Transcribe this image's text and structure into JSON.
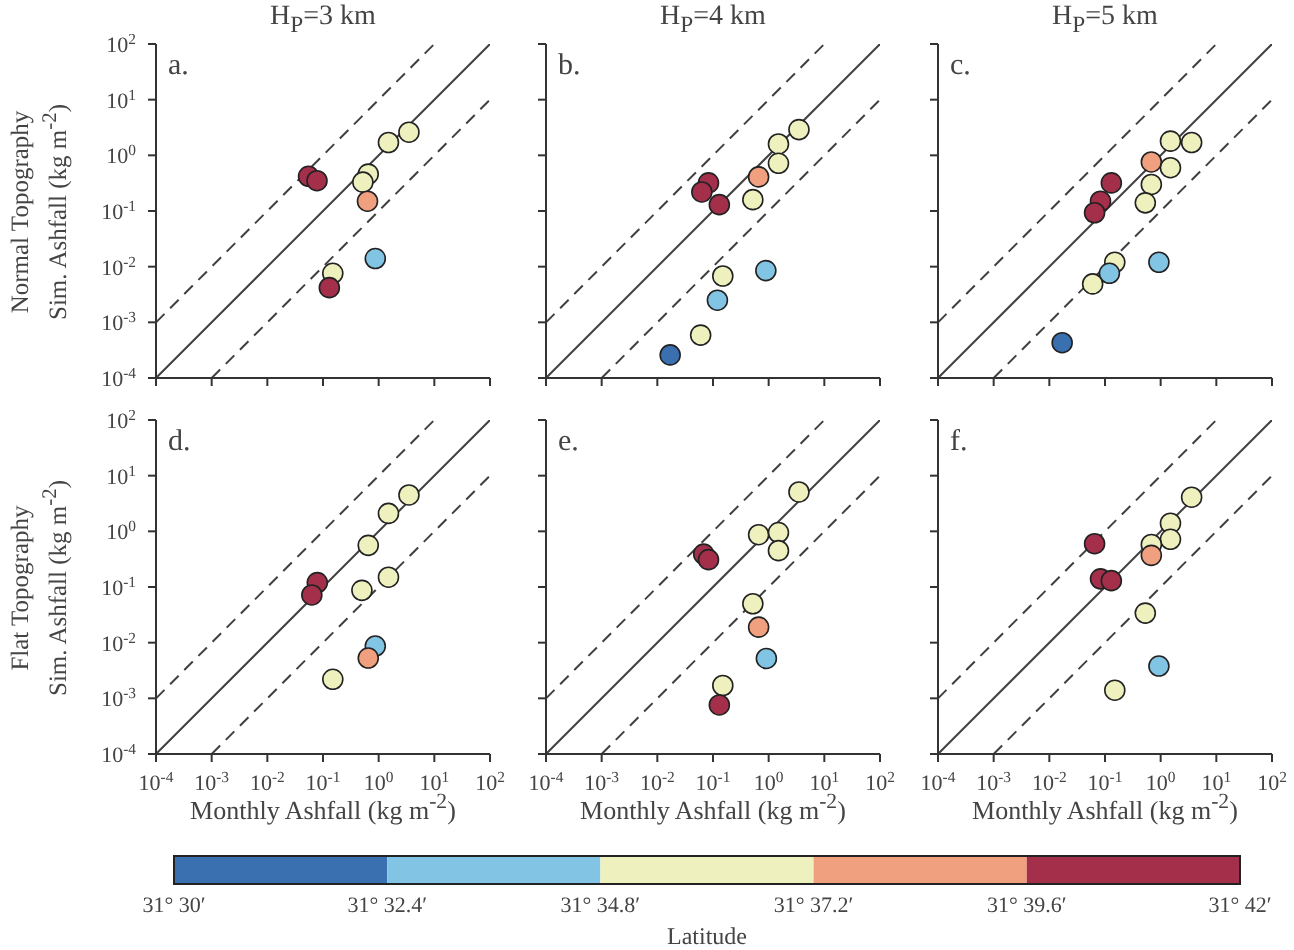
{
  "chart_data": [
    {
      "type": "scatter",
      "title": "H$_{P}$=3 km",
      "ylabel": "Normal Topography\nSim. Ashfall (kg m$^{-2}$)",
      "annotations": [
        "a."
      ],
      "log": "xy",
      "tick_labels": "y",
      "xlim": [
        0.0001,
        100
      ],
      "ylim": [
        0.0001,
        100
      ],
      "xticks": [
        {
          "value": 0.0001,
          "label": null
        },
        {
          "value": 0.001,
          "label": null
        },
        {
          "value": 0.01,
          "label": null
        },
        {
          "value": 0.1,
          "label": null
        },
        {
          "value": 1,
          "label": null
        },
        {
          "value": 10,
          "label": null
        },
        {
          "value": 100,
          "label": null
        }
      ],
      "yticks": [
        {
          "value": 0.0001,
          "label": "10$^{-4}$"
        },
        {
          "value": 0.001,
          "label": "10$^{-3}$"
        },
        {
          "value": 0.01,
          "label": "10$^{-2}$"
        },
        {
          "value": 0.1,
          "label": "10$^{-1}$"
        },
        {
          "value": 1,
          "label": "10$^{0}$"
        },
        {
          "value": 10,
          "label": "10$^{1}$"
        },
        {
          "value": 100,
          "label": "10$^{2}$"
        }
      ],
      "series": [
        {
          "type": "scatter",
          "marker": "circle",
          "x": [
            0.055,
            0.078,
            1.5,
            3.5,
            0.65,
            0.52,
            0.63,
            0.87,
            0.15,
            0.13
          ],
          "values": [
            0.42,
            0.35,
            1.7,
            2.6,
            0.46,
            0.33,
            0.15,
            0.014,
            0.0076,
            0.0042
          ],
          "colors": [
            "#a32f4a",
            "#a32f4a",
            "#eef1be",
            "#eef1be",
            "#eef1be",
            "#eef1be",
            "#f1a07f",
            "#82c4e4",
            "#eef1be",
            "#a32f4a"
          ]
        },
        {
          "type": "line",
          "x": [
            0.0001,
            100
          ],
          "values": [
            0.0001,
            100
          ],
          "color": "#404040",
          "line_style": "solid"
        },
        {
          "type": "line",
          "x": [
            0.0001,
            10
          ],
          "values": [
            0.001,
            100
          ],
          "color": "#404040",
          "line_style": "dashed"
        },
        {
          "type": "line",
          "x": [
            0.001,
            100
          ],
          "values": [
            0.0001,
            10
          ],
          "color": "#404040",
          "line_style": "dashed"
        }
      ]
    },
    {
      "type": "scatter",
      "title": "H$_{P}$=4 km",
      "annotations": [
        "b."
      ],
      "log": "xy",
      "tick_labels": false,
      "xlim": [
        0.0001,
        100
      ],
      "ylim": [
        0.0001,
        100
      ],
      "xticks": [
        {
          "value": 0.0001,
          "label": null
        },
        {
          "value": 0.001,
          "label": null
        },
        {
          "value": 0.01,
          "label": null
        },
        {
          "value": 0.1,
          "label": null
        },
        {
          "value": 1,
          "label": null
        },
        {
          "value": 10,
          "label": null
        },
        {
          "value": 100,
          "label": null
        }
      ],
      "yticks": [
        {
          "value": 0.0001,
          "label": null
        },
        {
          "value": 0.001,
          "label": null
        },
        {
          "value": 0.01,
          "label": null
        },
        {
          "value": 0.1,
          "label": null
        },
        {
          "value": 1,
          "label": null
        },
        {
          "value": 10,
          "label": null
        },
        {
          "value": 100,
          "label": null
        }
      ],
      "series": [
        {
          "type": "scatter",
          "marker": "circle",
          "x": [
            0.083,
            0.063,
            0.13,
            0.66,
            0.52,
            1.5,
            3.5,
            1.5,
            0.15,
            0.89,
            0.12,
            0.06,
            0.017
          ],
          "values": [
            0.32,
            0.22,
            0.13,
            0.41,
            0.16,
            1.6,
            2.9,
            0.72,
            0.0068,
            0.0085,
            0.0025,
            0.00059,
            0.00026
          ],
          "colors": [
            "#a32f4a",
            "#a32f4a",
            "#a32f4a",
            "#f1a07f",
            "#eef1be",
            "#eef1be",
            "#eef1be",
            "#eef1be",
            "#eef1be",
            "#82c4e4",
            "#82c4e4",
            "#eef1be",
            "#3a6fb0"
          ]
        },
        {
          "type": "line",
          "x": [
            0.0001,
            100
          ],
          "values": [
            0.0001,
            100
          ],
          "color": "#404040",
          "line_style": "solid"
        },
        {
          "type": "line",
          "x": [
            0.0001,
            10
          ],
          "values": [
            0.001,
            100
          ],
          "color": "#404040",
          "line_style": "dashed"
        },
        {
          "type": "line",
          "x": [
            0.001,
            100
          ],
          "values": [
            0.0001,
            10
          ],
          "color": "#404040",
          "line_style": "dashed"
        }
      ]
    },
    {
      "type": "scatter",
      "title": "H$_{P}$=5 km",
      "annotations": [
        "c."
      ],
      "log": "xy",
      "tick_labels": false,
      "xlim": [
        0.0001,
        100
      ],
      "ylim": [
        0.0001,
        100
      ],
      "xticks": [
        {
          "value": 0.0001,
          "label": null
        },
        {
          "value": 0.001,
          "label": null
        },
        {
          "value": 0.01,
          "label": null
        },
        {
          "value": 0.1,
          "label": null
        },
        {
          "value": 1,
          "label": null
        },
        {
          "value": 10,
          "label": null
        },
        {
          "value": 100,
          "label": null
        }
      ],
      "yticks": [
        {
          "value": 0.0001,
          "label": null
        },
        {
          "value": 0.001,
          "label": null
        },
        {
          "value": 0.01,
          "label": null
        },
        {
          "value": 0.1,
          "label": null
        },
        {
          "value": 1,
          "label": null
        },
        {
          "value": 10,
          "label": null
        },
        {
          "value": 100,
          "label": null
        }
      ],
      "series": [
        {
          "type": "scatter",
          "marker": "circle",
          "x": [
            1.5,
            3.6,
            0.68,
            1.5,
            0.68,
            0.53,
            0.13,
            0.083,
            0.065,
            0.15,
            0.12,
            0.93,
            0.06,
            0.017
          ],
          "values": [
            1.8,
            1.7,
            0.76,
            0.6,
            0.3,
            0.14,
            0.32,
            0.15,
            0.093,
            0.012,
            0.0076,
            0.012,
            0.0049,
            0.00043
          ],
          "colors": [
            "#eef1be",
            "#eef1be",
            "#f1a07f",
            "#eef1be",
            "#eef1be",
            "#eef1be",
            "#a32f4a",
            "#a32f4a",
            "#a32f4a",
            "#eef1be",
            "#82c4e4",
            "#82c4e4",
            "#eef1be",
            "#3a6fb0"
          ]
        },
        {
          "type": "line",
          "x": [
            0.0001,
            100
          ],
          "values": [
            0.0001,
            100
          ],
          "color": "#404040",
          "line_style": "solid"
        },
        {
          "type": "line",
          "x": [
            0.0001,
            10
          ],
          "values": [
            0.001,
            100
          ],
          "color": "#404040",
          "line_style": "dashed"
        },
        {
          "type": "line",
          "x": [
            0.001,
            100
          ],
          "values": [
            0.0001,
            10
          ],
          "color": "#404040",
          "line_style": "dashed"
        }
      ]
    },
    {
      "type": "scatter",
      "xlabel": "Monthly Ashfall (kg m$^{-2}$)",
      "ylabel": "Flat Topography\nSim. Ashfall (kg m$^{-2}$)",
      "annotations": [
        "d."
      ],
      "log": "xy",
      "xlim": [
        0.0001,
        100
      ],
      "ylim": [
        0.0001,
        100
      ],
      "xticks": [
        {
          "value": 0.0001,
          "label": "10$^{-4}$"
        },
        {
          "value": 0.001,
          "label": "10$^{-3}$"
        },
        {
          "value": 0.01,
          "label": "10$^{-2}$"
        },
        {
          "value": 0.1,
          "label": "10$^{-1}$"
        },
        {
          "value": 1,
          "label": "10$^{0}$"
        },
        {
          "value": 10,
          "label": "10$^{1}$"
        },
        {
          "value": 100,
          "label": "10$^{2}$"
        }
      ],
      "yticks": [
        {
          "value": 0.0001,
          "label": "10$^{-4}$"
        },
        {
          "value": 0.001,
          "label": "10$^{-3}$"
        },
        {
          "value": 0.01,
          "label": "10$^{-2}$"
        },
        {
          "value": 0.1,
          "label": "10$^{-1}$"
        },
        {
          "value": 1,
          "label": "10$^{0}$"
        },
        {
          "value": 10,
          "label": "10$^{1}$"
        },
        {
          "value": 100,
          "label": "10$^{2}$"
        }
      ],
      "series": [
        {
          "type": "scatter",
          "marker": "circle",
          "x": [
            3.5,
            1.5,
            0.65,
            0.079,
            0.063,
            1.5,
            0.5,
            0.87,
            0.65,
            0.15
          ],
          "values": [
            4.5,
            2.1,
            0.56,
            0.12,
            0.072,
            0.15,
            0.087,
            0.0087,
            0.0053,
            0.0022
          ],
          "colors": [
            "#eef1be",
            "#eef1be",
            "#eef1be",
            "#a32f4a",
            "#a32f4a",
            "#eef1be",
            "#eef1be",
            "#82c4e4",
            "#f1a07f",
            "#eef1be"
          ]
        },
        {
          "type": "line",
          "x": [
            0.0001,
            100
          ],
          "values": [
            0.0001,
            100
          ],
          "color": "#404040",
          "line_style": "solid"
        },
        {
          "type": "line",
          "x": [
            0.0001,
            10
          ],
          "values": [
            0.001,
            100
          ],
          "color": "#404040",
          "line_style": "dashed"
        },
        {
          "type": "line",
          "x": [
            0.001,
            100
          ],
          "values": [
            0.0001,
            10
          ],
          "color": "#404040",
          "line_style": "dashed"
        }
      ]
    },
    {
      "type": "scatter",
      "xlabel": "Monthly Ashfall (kg m$^{-2}$)",
      "annotations": [
        "e."
      ],
      "log": "xy",
      "tick_labels": "x",
      "xlim": [
        0.0001,
        100
      ],
      "ylim": [
        0.0001,
        100
      ],
      "xticks": [
        {
          "value": 0.0001,
          "label": "10$^{-4}$"
        },
        {
          "value": 0.001,
          "label": "10$^{-3}$"
        },
        {
          "value": 0.01,
          "label": "10$^{-2}$"
        },
        {
          "value": 0.1,
          "label": "10$^{-1}$"
        },
        {
          "value": 1,
          "label": "10$^{0}$"
        },
        {
          "value": 10,
          "label": "10$^{1}$"
        },
        {
          "value": 100,
          "label": "10$^{2}$"
        }
      ],
      "yticks": [
        {
          "value": 0.0001,
          "label": null
        },
        {
          "value": 0.001,
          "label": null
        },
        {
          "value": 0.01,
          "label": null
        },
        {
          "value": 0.1,
          "label": null
        },
        {
          "value": 1,
          "label": null
        },
        {
          "value": 10,
          "label": null
        },
        {
          "value": 100,
          "label": null
        }
      ],
      "series": [
        {
          "type": "scatter",
          "marker": "circle",
          "x": [
            3.5,
            0.66,
            1.5,
            1.5,
            0.068,
            0.083,
            0.52,
            0.66,
            0.91,
            0.15,
            0.13
          ],
          "values": [
            5.1,
            0.87,
            0.95,
            0.45,
            0.39,
            0.31,
            0.05,
            0.019,
            0.0052,
            0.0017,
            0.00076
          ],
          "colors": [
            "#eef1be",
            "#eef1be",
            "#eef1be",
            "#eef1be",
            "#a32f4a",
            "#a32f4a",
            "#eef1be",
            "#f1a07f",
            "#82c4e4",
            "#eef1be",
            "#a32f4a"
          ]
        },
        {
          "type": "line",
          "x": [
            0.0001,
            100
          ],
          "values": [
            0.0001,
            100
          ],
          "color": "#404040",
          "line_style": "solid"
        },
        {
          "type": "line",
          "x": [
            0.0001,
            10
          ],
          "values": [
            0.001,
            100
          ],
          "color": "#404040",
          "line_style": "dashed"
        },
        {
          "type": "line",
          "x": [
            0.001,
            100
          ],
          "values": [
            0.0001,
            10
          ],
          "color": "#404040",
          "line_style": "dashed"
        }
      ]
    },
    {
      "type": "scatter",
      "xlabel": "Monthly Ashfall (kg m$^{-2}$)",
      "annotations": [
        "f."
      ],
      "log": "xy",
      "tick_labels": "x",
      "clabel": "Latitude",
      "clim": [
        31.5,
        31.7
      ],
      "cticks": [
        {
          "value": 31.5,
          "label": "31° 30′"
        },
        {
          "value": 31.54,
          "label": "31° 32.4′"
        },
        {
          "value": 31.58,
          "label": "31° 34.8′"
        },
        {
          "value": 31.62,
          "label": "31° 37.2′"
        },
        {
          "value": 31.66,
          "label": "31° 39.6′"
        },
        {
          "value": 31.7,
          "label": "31° 42′"
        }
      ],
      "xlim": [
        0.0001,
        100
      ],
      "ylim": [
        0.0001,
        100
      ],
      "xticks": [
        {
          "value": 0.0001,
          "label": "10$^{-4}$"
        },
        {
          "value": 0.001,
          "label": "10$^{-3}$"
        },
        {
          "value": 0.01,
          "label": "10$^{-2}$"
        },
        {
          "value": 0.1,
          "label": "10$^{-1}$"
        },
        {
          "value": 1,
          "label": "10$^{0}$"
        },
        {
          "value": 10,
          "label": "10$^{1}$"
        },
        {
          "value": 100,
          "label": "10$^{2}$"
        }
      ],
      "yticks": [
        {
          "value": 0.0001,
          "label": null
        },
        {
          "value": 0.001,
          "label": null
        },
        {
          "value": 0.01,
          "label": null
        },
        {
          "value": 0.1,
          "label": null
        },
        {
          "value": 1,
          "label": null
        },
        {
          "value": 10,
          "label": null
        },
        {
          "value": 100,
          "label": null
        }
      ],
      "series": [
        {
          "type": "scatter",
          "marker": "circle",
          "x": [
            3.6,
            1.5,
            1.5,
            0.68,
            0.68,
            0.065,
            0.083,
            0.13,
            0.53,
            0.93,
            0.15
          ],
          "values": [
            4.1,
            1.4,
            0.72,
            0.58,
            0.37,
            0.6,
            0.14,
            0.13,
            0.034,
            0.0038,
            0.0014
          ],
          "colors": [
            "#eef1be",
            "#eef1be",
            "#eef1be",
            "#eef1be",
            "#f1a07f",
            "#a32f4a",
            "#a32f4a",
            "#a32f4a",
            "#eef1be",
            "#82c4e4",
            "#eef1be"
          ]
        },
        {
          "type": "line",
          "x": [
            0.0001,
            100
          ],
          "values": [
            0.0001,
            100
          ],
          "color": "#404040",
          "line_style": "solid"
        },
        {
          "type": "line",
          "x": [
            0.0001,
            10
          ],
          "values": [
            0.001,
            100
          ],
          "color": "#404040",
          "line_style": "dashed"
        },
        {
          "type": "line",
          "x": [
            0.001,
            100
          ],
          "values": [
            0.0001,
            10
          ],
          "color": "#404040",
          "line_style": "dashed"
        }
      ]
    }
  ]
}
